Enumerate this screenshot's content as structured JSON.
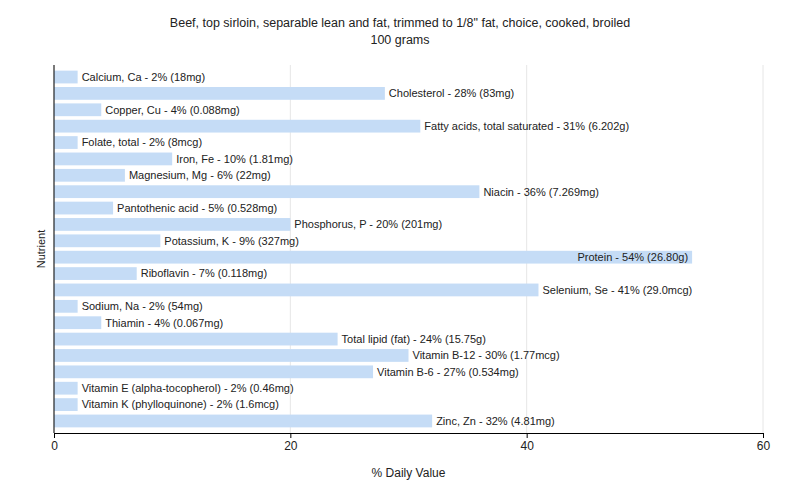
{
  "chart_data": {
    "type": "bar",
    "orientation": "horizontal",
    "title": "Beef, top sirloin, separable lean and fat, trimmed to 1/8\" fat, choice, cooked, broiled",
    "subtitle": "100 grams",
    "x_label": "% Daily Value",
    "y_label": "Nutrient",
    "categories": [
      "Calcium, Ca - 2% (18mg)",
      "Cholesterol - 28% (83mg)",
      "Copper, Cu - 4% (0.088mg)",
      "Fatty acids, total saturated - 31% (6.202g)",
      "Folate, total - 2% (8mcg)",
      "Iron, Fe - 10% (1.81mg)",
      "Magnesium, Mg - 6% (22mg)",
      "Niacin - 36% (7.269mg)",
      "Pantothenic acid - 5% (0.528mg)",
      "Phosphorus, P - 20% (201mg)",
      "Potassium, K - 9% (327mg)",
      "Protein - 54% (26.80g)",
      "Riboflavin - 7% (0.118mg)",
      "Selenium, Se - 41% (29.0mcg)",
      "Sodium, Na - 2% (54mg)",
      "Thiamin - 4% (0.067mg)",
      "Total lipid (fat) - 24% (15.75g)",
      "Vitamin B-12 - 30% (1.77mcg)",
      "Vitamin B-6 - 27% (0.534mg)",
      "Vitamin E (alpha-tocopherol) - 2% (0.46mg)",
      "Vitamin K (phylloquinone) - 2% (1.6mcg)",
      "Zinc, Zn - 32% (4.81mg)"
    ],
    "values": [
      2,
      28,
      4,
      31,
      2,
      10,
      6,
      36,
      5,
      20,
      9,
      54,
      7,
      41,
      2,
      4,
      24,
      30,
      27,
      2,
      2,
      32
    ],
    "color": "#c5dcf6",
    "xlim": [
      0,
      60
    ],
    "xticks": [
      0,
      20,
      40,
      60
    ],
    "grid": true,
    "tick_labels": "x"
  }
}
